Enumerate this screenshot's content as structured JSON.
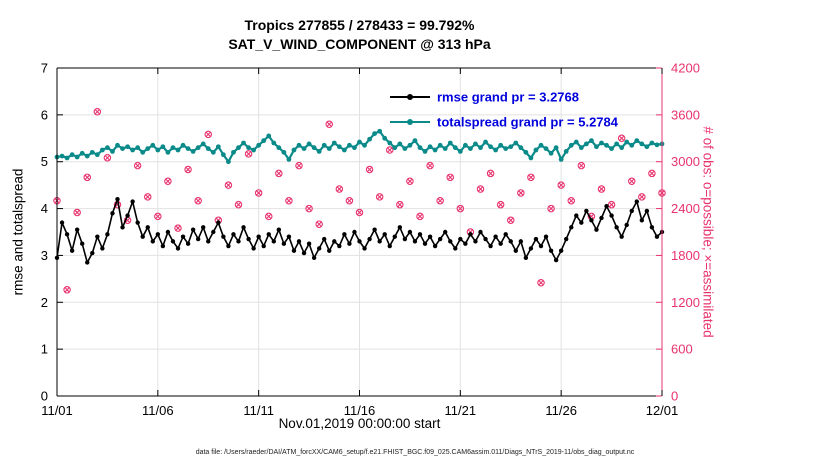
{
  "chart_data": {
    "type": "line",
    "title": "Tropics 277855 / 278433 = 99.792%",
    "subtitle": "SAT_V_WIND_COMPONENT @ 313 hPa",
    "xlabel": "Nov.01,2019 00:00:00 start",
    "ylabel_left": "rmse and totalspread",
    "ylabel_right": "# of obs: o=possible; ×=assimilated",
    "caption": "data file: /Users/raeder/DAI/ATM_forcXX/CAM6_setup/f.e21.FHIST_BGC.f09_025.CAM6assim.011/Diags_NTrS_2019-11/obs_diag_output.nc",
    "grid": true,
    "legend_position": "top-center-inside",
    "colors": {
      "rmse": "#000000",
      "totalspread": "#0b8a8a",
      "obs": "#e8336e",
      "legend_text": "#0000dd",
      "grid": "#e2e2e2",
      "axis": "#000000"
    },
    "y_left": {
      "min": 0,
      "max": 7,
      "ticks": [
        0,
        1,
        2,
        3,
        4,
        5,
        6,
        7
      ]
    },
    "y_right": {
      "min": 0,
      "max": 4200,
      "ticks": [
        0,
        600,
        1200,
        1800,
        2400,
        3000,
        3600,
        4200
      ]
    },
    "x_axis": {
      "min_day": 0,
      "max_day": 30,
      "ticks": [
        {
          "label": "11/01",
          "day": 0
        },
        {
          "label": "11/06",
          "day": 5
        },
        {
          "label": "11/11",
          "day": 10
        },
        {
          "label": "11/16",
          "day": 15
        },
        {
          "label": "11/21",
          "day": 20
        },
        {
          "label": "11/26",
          "day": 25
        },
        {
          "label": "12/01",
          "day": 30
        }
      ]
    },
    "legend": [
      {
        "series": "rmse",
        "label": "rmse grand pr = 3.2768"
      },
      {
        "series": "totalspread",
        "label": "totalspread grand pr = 5.2784"
      }
    ],
    "series": [
      {
        "name": "rmse",
        "axis": "left",
        "x_start_day": 0,
        "x_step_days": 0.25,
        "values": [
          2.95,
          3.7,
          3.45,
          3.1,
          3.55,
          3.25,
          2.85,
          3.05,
          3.4,
          3.15,
          3.45,
          3.9,
          4.2,
          3.6,
          3.85,
          4.15,
          3.7,
          3.4,
          3.6,
          3.3,
          3.45,
          3.2,
          3.5,
          3.3,
          3.15,
          3.4,
          3.25,
          3.55,
          3.35,
          3.6,
          3.3,
          3.5,
          3.7,
          3.4,
          3.2,
          3.45,
          3.3,
          3.6,
          3.35,
          3.15,
          3.4,
          3.2,
          3.45,
          3.3,
          3.55,
          3.25,
          3.4,
          3.1,
          3.3,
          3.05,
          3.25,
          2.95,
          3.15,
          3.35,
          3.1,
          3.3,
          3.2,
          3.45,
          3.25,
          3.5,
          3.3,
          3.15,
          3.35,
          3.55,
          3.3,
          3.45,
          3.2,
          3.4,
          3.6,
          3.35,
          3.5,
          3.3,
          3.45,
          3.25,
          3.4,
          3.2,
          3.35,
          3.5,
          3.3,
          3.15,
          3.35,
          3.25,
          3.45,
          3.3,
          3.5,
          3.35,
          3.2,
          3.4,
          3.25,
          3.45,
          3.3,
          3.1,
          3.3,
          2.95,
          3.15,
          3.35,
          3.2,
          3.4,
          3.1,
          2.9,
          3.1,
          3.35,
          3.6,
          3.85,
          3.7,
          3.95,
          3.75,
          3.55,
          3.8,
          4.05,
          3.85,
          3.6,
          3.4,
          3.65,
          3.95,
          4.15,
          3.75,
          3.95,
          3.6,
          3.4,
          3.5
        ]
      },
      {
        "name": "totalspread",
        "axis": "left",
        "x_start_day": 0,
        "x_step_days": 0.25,
        "values": [
          5.1,
          5.12,
          5.08,
          5.15,
          5.1,
          5.18,
          5.12,
          5.2,
          5.15,
          5.25,
          5.3,
          5.22,
          5.35,
          5.28,
          5.32,
          5.25,
          5.3,
          5.2,
          5.28,
          5.35,
          5.25,
          5.32,
          5.2,
          5.3,
          5.25,
          5.35,
          5.28,
          5.22,
          5.3,
          5.38,
          5.28,
          5.2,
          5.32,
          5.15,
          5.0,
          5.2,
          5.3,
          5.4,
          5.3,
          5.25,
          5.35,
          5.45,
          5.55,
          5.4,
          5.3,
          5.2,
          5.05,
          5.25,
          5.35,
          5.28,
          5.38,
          5.3,
          5.22,
          5.35,
          5.28,
          5.4,
          5.32,
          5.25,
          5.35,
          5.3,
          5.42,
          5.35,
          5.48,
          5.6,
          5.65,
          5.5,
          5.4,
          5.3,
          5.38,
          5.28,
          5.35,
          5.45,
          5.3,
          5.22,
          5.32,
          5.25,
          5.35,
          5.28,
          5.4,
          5.3,
          5.22,
          5.35,
          5.28,
          5.38,
          5.3,
          5.42,
          5.32,
          5.25,
          5.35,
          5.28,
          5.32,
          5.4,
          5.3,
          5.2,
          5.08,
          5.25,
          5.35,
          5.28,
          5.18,
          5.3,
          5.05,
          5.22,
          5.35,
          5.42,
          5.3,
          5.38,
          5.45,
          5.32,
          5.4,
          5.35,
          5.28,
          5.38,
          5.3,
          5.42,
          5.35,
          5.45,
          5.38,
          5.32,
          5.4,
          5.36,
          5.38
        ]
      }
    ],
    "obs_counts": {
      "axis": "right",
      "x_start_day": 0,
      "x_step_days": 0.5,
      "possible": [
        2500,
        1360,
        2350,
        2800,
        3640,
        3050,
        2450,
        2250,
        2950,
        2550,
        2300,
        2750,
        2150,
        2900,
        2500,
        3350,
        2250,
        2700,
        2450,
        3100,
        2600,
        2300,
        2850,
        2500,
        2950,
        2400,
        2200,
        3480,
        2650,
        2500,
        2350,
        2900,
        2550,
        3150,
        2450,
        2750,
        2300,
        2950,
        2500,
        2800,
        2400,
        2100,
        2650,
        2850,
        2450,
        2250,
        2600,
        2800,
        1450,
        2400,
        2700,
        2500,
        2950,
        2300,
        2650,
        2450,
        3300,
        2750,
        2550,
        2850,
        2600
      ],
      "assimilated_same_as_possible": true
    }
  }
}
